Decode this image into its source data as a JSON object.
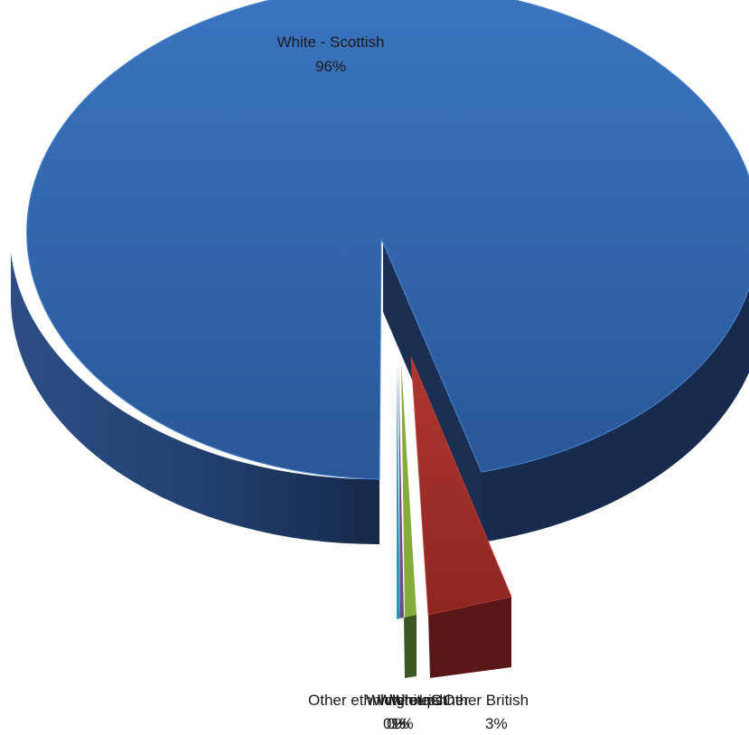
{
  "chart_data": {
    "type": "pie",
    "style": "3d-exploded",
    "title": "",
    "slices": [
      {
        "name": "White - Scottish",
        "value": 96,
        "label_value": "96%",
        "color": "#2e63a8"
      },
      {
        "name": "White - Other British",
        "value": 3,
        "label_value": "3%",
        "color": "#8f2a26"
      },
      {
        "name": "White - Irish",
        "value": 1,
        "label_value": "1%",
        "color": "#7da234"
      },
      {
        "name": "White - Other",
        "value": 0.4,
        "label_value": "0%",
        "color": "#6a4a8a"
      },
      {
        "name": "Other ethnic groups",
        "value": 0.3,
        "label_value": "0%",
        "color": "#2f96b8"
      }
    ],
    "overlapping_label_text": "Other ethnic groups White - Irish White - Other White - Other British",
    "overlapping_label_values": "0% 0% 1% 3%"
  }
}
